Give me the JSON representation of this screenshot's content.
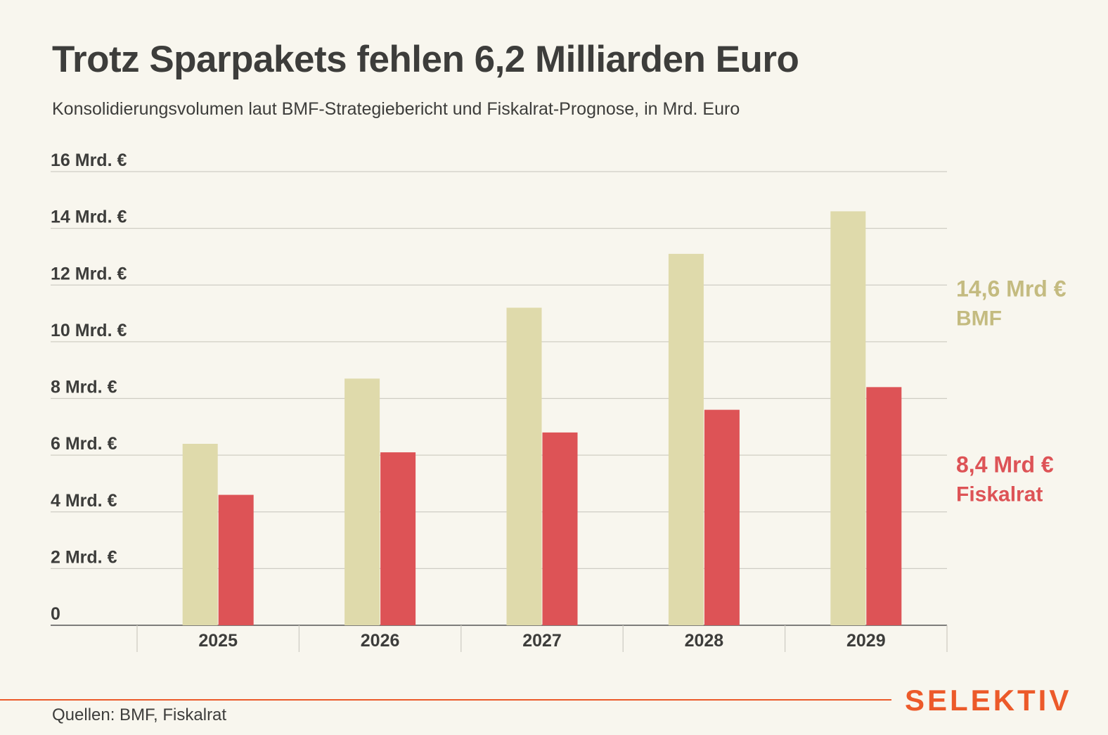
{
  "header": {
    "title": "Trotz Sparpakets fehlen 6,2 Milliarden Euro",
    "subtitle": "Konsolidierungsvolumen laut BMF-Strategiebericht und Fiskalrat-Prognose, in Mrd. Euro"
  },
  "footer": {
    "source": "Quellen: BMF, Fiskalrat",
    "logo": "SELEKTIV"
  },
  "colors": {
    "bmf": "#dfdaab",
    "fiskalrat": "#dd5356",
    "bmf_label": "#c4bb80",
    "fiskalrat_label": "#dd5356",
    "grid": "#cfcdc4",
    "axis": "#555555",
    "accent": "#ec5a2a"
  },
  "chart_data": {
    "type": "bar",
    "categories": [
      "2025",
      "2026",
      "2027",
      "2028",
      "2029"
    ],
    "series": [
      {
        "name": "BMF",
        "values": [
          6.4,
          8.7,
          11.2,
          13.1,
          14.6
        ]
      },
      {
        "name": "Fiskalrat",
        "values": [
          4.6,
          6.1,
          6.8,
          7.6,
          8.4
        ]
      }
    ],
    "ylim": [
      0,
      16
    ],
    "yticks": [
      0,
      2,
      4,
      6,
      8,
      10,
      12,
      14,
      16
    ],
    "ytick_labels": [
      "0",
      "2 Mrd. €",
      "4 Mrd. €",
      "6 Mrd. €",
      "8 Mrd. €",
      "10 Mrd. €",
      "12 Mrd. €",
      "14 Mrd. €",
      "16 Mrd. €"
    ],
    "grid": true,
    "legend": "right",
    "end_labels": [
      {
        "value_text": "14,6 Mrd €",
        "series_text": "BMF",
        "series_index": 0
      },
      {
        "value_text": "8,4 Mrd €",
        "series_text": "Fiskalrat",
        "series_index": 1
      }
    ]
  }
}
